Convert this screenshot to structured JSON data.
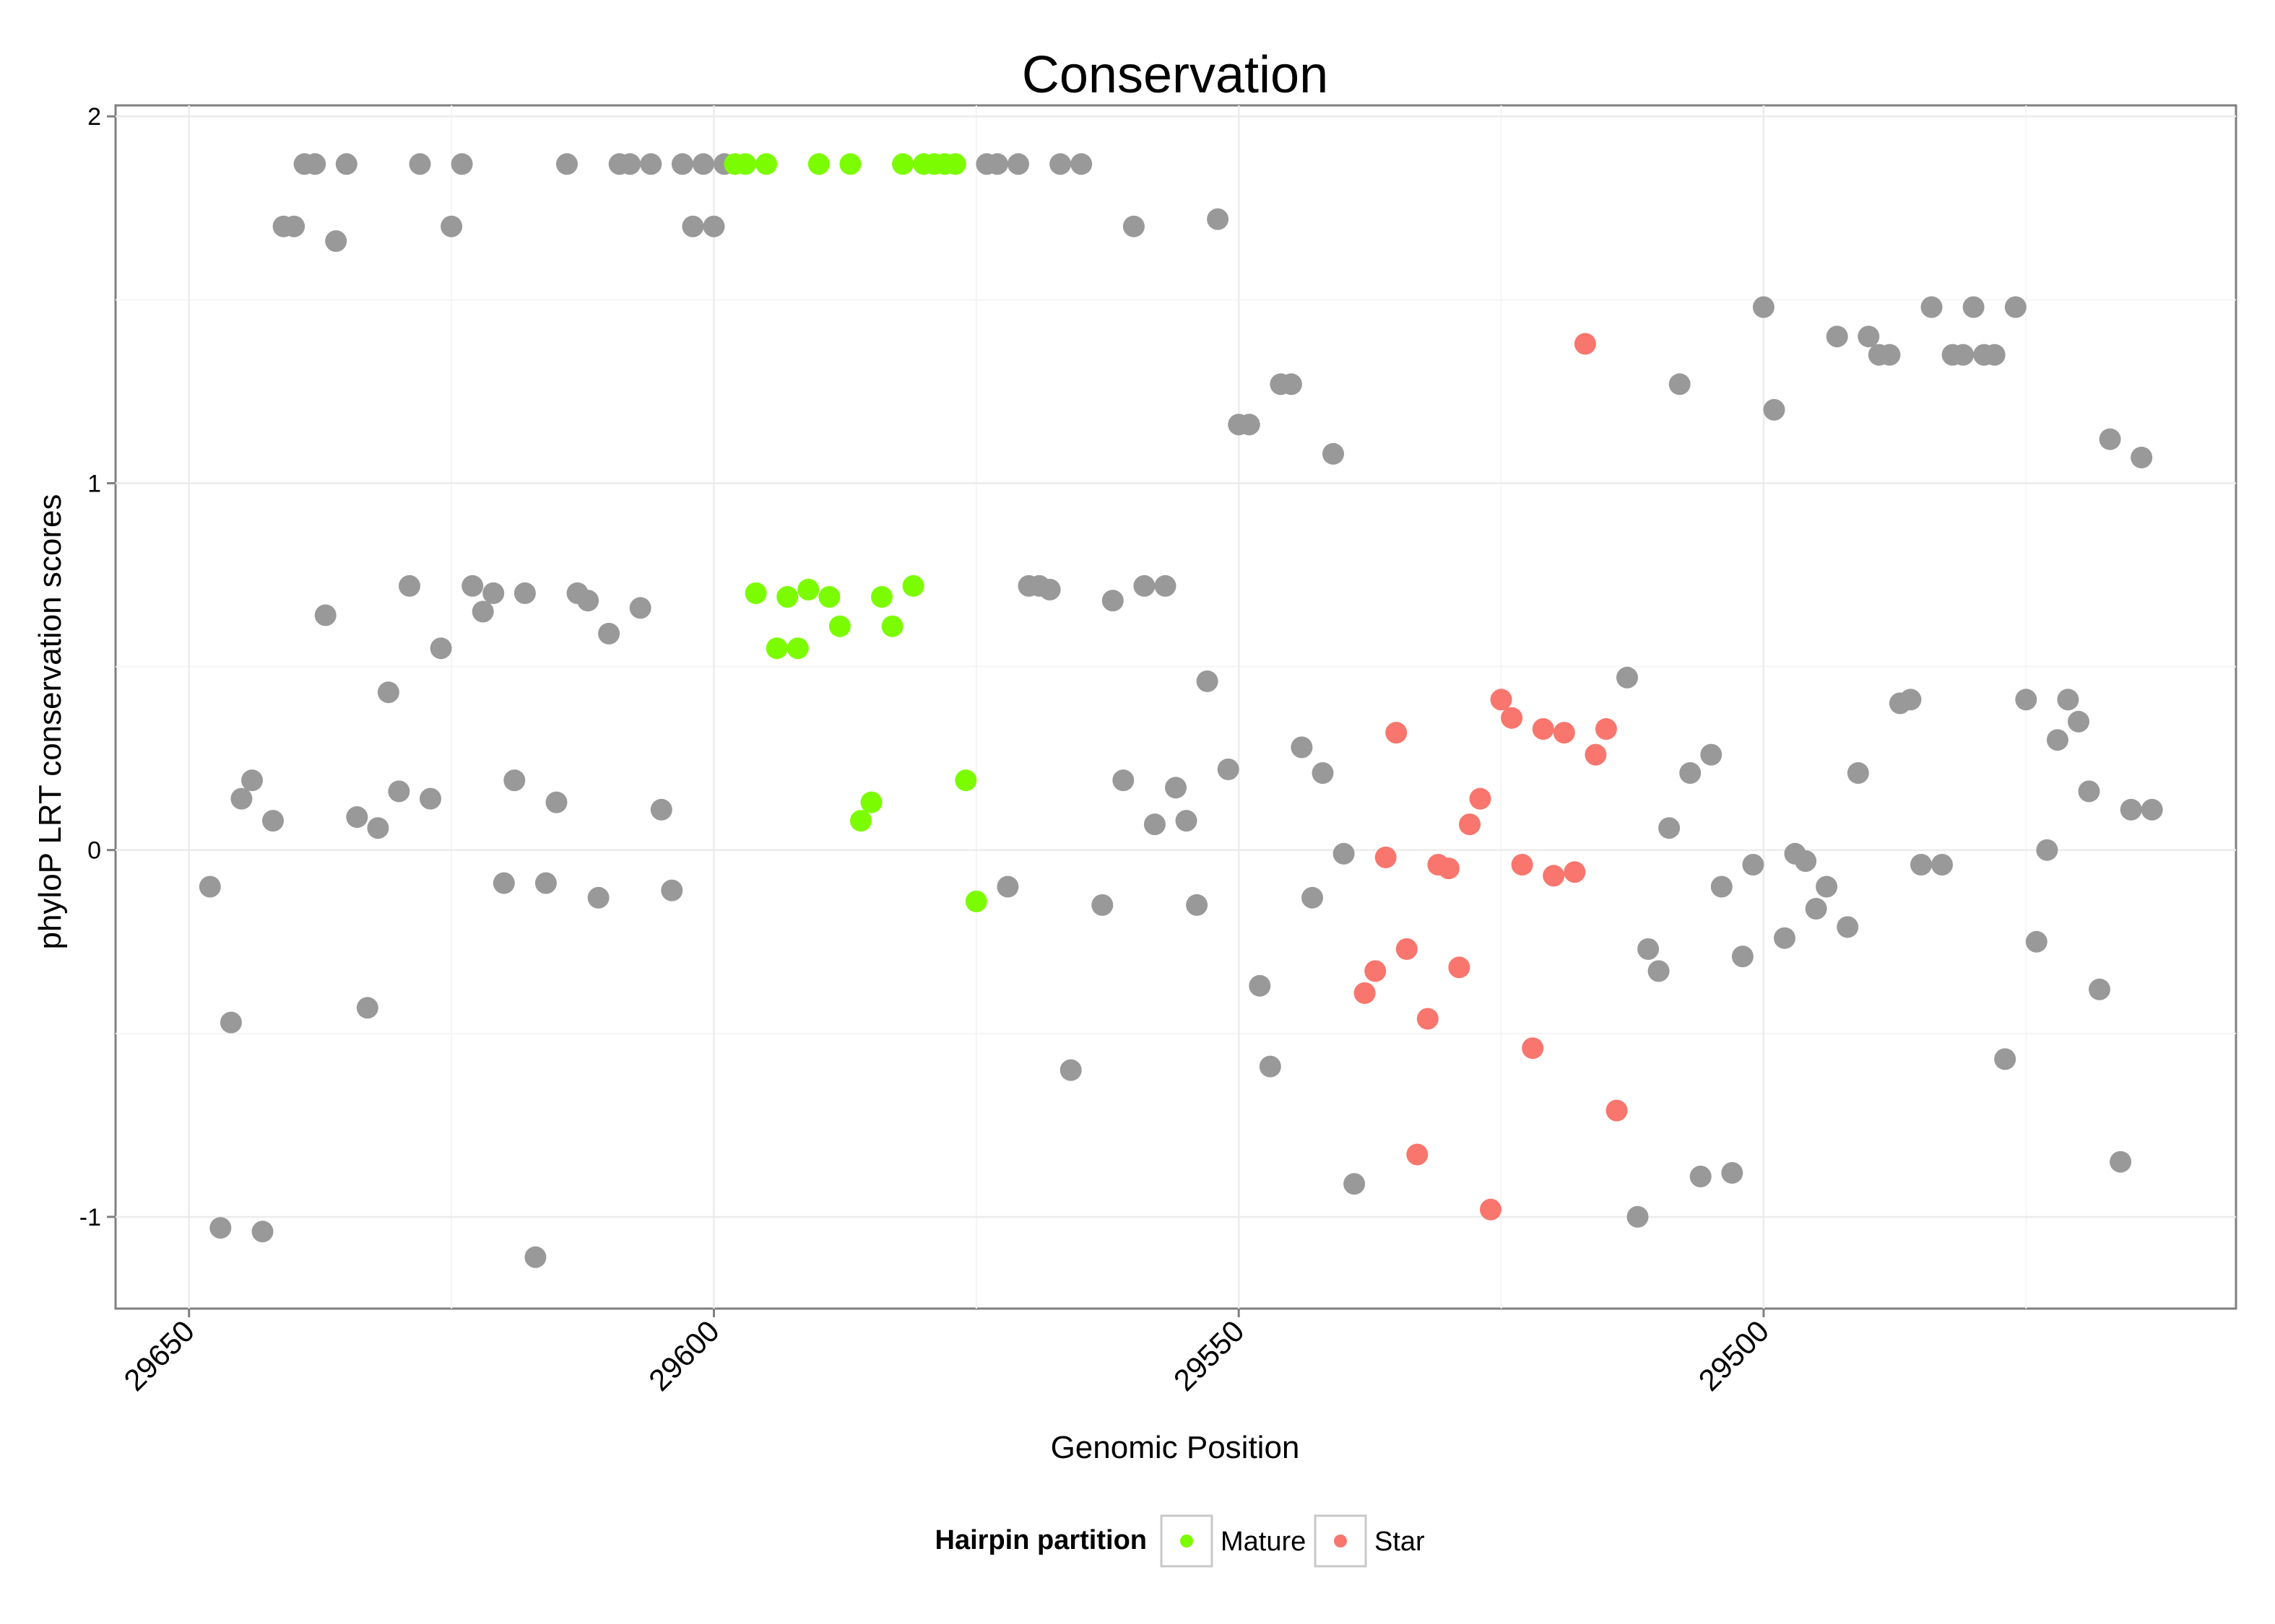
{
  "chart_data": {
    "type": "scatter",
    "title": "Conservation",
    "xlabel": "Genomic Position",
    "ylabel": "phyloP LRT conservation scores",
    "x_reversed": true,
    "xlim": [
      29657,
      29455
    ],
    "ylim": [
      -1.25,
      2.03
    ],
    "x_ticks": [
      29650,
      29600,
      29550,
      29500
    ],
    "x_tick_labels": [
      "29650",
      "29600",
      "29550",
      "29500"
    ],
    "y_ticks": [
      -1,
      0,
      1,
      2
    ],
    "y_tick_labels": [
      "-1",
      "0",
      "1",
      "2"
    ],
    "grid": true,
    "legend": {
      "title": "Hairpin partition",
      "position": "bottom",
      "entries": [
        {
          "name": "Mature",
          "color": "#7CFC00"
        },
        {
          "name": "Star",
          "color": "#F8766D"
        }
      ]
    },
    "colors": {
      "Other": "#999999",
      "Mature": "#7CFC00",
      "Star": "#F8766D"
    },
    "series": [
      {
        "name": "Other",
        "points": [
          [
            29648,
            -0.1
          ],
          [
            29647,
            -1.03
          ],
          [
            29646,
            -0.47
          ],
          [
            29645,
            0.14
          ],
          [
            29644,
            0.19
          ],
          [
            29643,
            -1.04
          ],
          [
            29642,
            0.08
          ],
          [
            29641,
            1.7
          ],
          [
            29640,
            1.7
          ],
          [
            29639,
            1.87
          ],
          [
            29638,
            1.87
          ],
          [
            29637,
            0.64
          ],
          [
            29636,
            1.66
          ],
          [
            29635,
            1.87
          ],
          [
            29634,
            0.09
          ],
          [
            29633,
            -0.43
          ],
          [
            29632,
            0.06
          ],
          [
            29631,
            0.43
          ],
          [
            29630,
            0.16
          ],
          [
            29629,
            0.72
          ],
          [
            29628,
            1.87
          ],
          [
            29627,
            0.14
          ],
          [
            29626,
            0.55
          ],
          [
            29625,
            1.7
          ],
          [
            29624,
            1.87
          ],
          [
            29623,
            0.72
          ],
          [
            29622,
            0.65
          ],
          [
            29621,
            0.7
          ],
          [
            29620,
            -0.09
          ],
          [
            29619,
            0.19
          ],
          [
            29618,
            0.7
          ],
          [
            29617,
            -1.11
          ],
          [
            29616,
            -0.09
          ],
          [
            29615,
            0.13
          ],
          [
            29614,
            1.87
          ],
          [
            29613,
            0.7
          ],
          [
            29612,
            0.68
          ],
          [
            29611,
            -0.13
          ],
          [
            29610,
            0.59
          ],
          [
            29609,
            1.87
          ],
          [
            29608,
            1.87
          ],
          [
            29607,
            0.66
          ],
          [
            29606,
            1.87
          ],
          [
            29605,
            0.11
          ],
          [
            29604,
            -0.11
          ],
          [
            29603,
            1.87
          ],
          [
            29602,
            1.7
          ],
          [
            29601,
            1.87
          ],
          [
            29600,
            1.7
          ],
          [
            29599,
            1.87
          ],
          [
            29573,
            1.87
          ],
          [
            29574,
            1.87
          ],
          [
            29572,
            -0.1
          ],
          [
            29571,
            1.87
          ],
          [
            29570,
            0.72
          ],
          [
            29569,
            0.72
          ],
          [
            29568,
            0.71
          ],
          [
            29567,
            1.87
          ],
          [
            29566,
            -0.6
          ],
          [
            29565,
            1.87
          ],
          [
            29563,
            -0.15
          ],
          [
            29562,
            0.68
          ],
          [
            29561,
            0.19
          ],
          [
            29560,
            1.7
          ],
          [
            29559,
            0.72
          ],
          [
            29558,
            0.07
          ],
          [
            29557,
            0.72
          ],
          [
            29556,
            0.17
          ],
          [
            29555,
            0.08
          ],
          [
            29554,
            -0.15
          ],
          [
            29553,
            0.46
          ],
          [
            29552,
            1.72
          ],
          [
            29551,
            0.22
          ],
          [
            29550,
            1.16
          ],
          [
            29549,
            1.16
          ],
          [
            29548,
            -0.37
          ],
          [
            29547,
            -0.59
          ],
          [
            29546,
            1.27
          ],
          [
            29545,
            1.27
          ],
          [
            29544,
            0.28
          ],
          [
            29543,
            -0.13
          ],
          [
            29542,
            0.21
          ],
          [
            29541,
            1.08
          ],
          [
            29540,
            -0.01
          ],
          [
            29539,
            -0.91
          ],
          [
            29513,
            0.47
          ],
          [
            29512,
            -1.0
          ],
          [
            29511,
            -0.27
          ],
          [
            29510,
            -0.33
          ],
          [
            29509,
            0.06
          ],
          [
            29508,
            1.27
          ],
          [
            29507,
            0.21
          ],
          [
            29506,
            -0.89
          ],
          [
            29505,
            0.26
          ],
          [
            29504,
            -0.1
          ],
          [
            29503,
            -0.88
          ],
          [
            29502,
            -0.29
          ],
          [
            29501,
            -0.04
          ],
          [
            29500,
            1.48
          ],
          [
            29499,
            1.2
          ],
          [
            29498,
            -0.24
          ],
          [
            29497,
            -0.01
          ],
          [
            29496,
            -0.03
          ],
          [
            29495,
            -0.16
          ],
          [
            29494,
            -0.1
          ],
          [
            29493,
            1.4
          ],
          [
            29492,
            -0.21
          ],
          [
            29491,
            0.21
          ],
          [
            29490,
            1.4
          ],
          [
            29489,
            1.35
          ],
          [
            29488,
            1.35
          ],
          [
            29487,
            0.4
          ],
          [
            29486,
            0.41
          ],
          [
            29485,
            -0.04
          ],
          [
            29484,
            1.48
          ],
          [
            29483,
            -0.04
          ],
          [
            29482,
            1.35
          ],
          [
            29481,
            1.35
          ],
          [
            29480,
            1.48
          ],
          [
            29479,
            1.35
          ],
          [
            29478,
            1.35
          ],
          [
            29477,
            -0.57
          ],
          [
            29476,
            1.48
          ],
          [
            29475,
            0.41
          ],
          [
            29474,
            -0.25
          ],
          [
            29473,
            0.0
          ],
          [
            29472,
            0.3
          ],
          [
            29471,
            0.41
          ],
          [
            29470,
            0.35
          ],
          [
            29469,
            0.16
          ],
          [
            29468,
            -0.38
          ],
          [
            29467,
            1.12
          ],
          [
            29466,
            -0.85
          ],
          [
            29465,
            0.11
          ],
          [
            29464,
            1.07
          ],
          [
            29463,
            0.11
          ]
        ]
      },
      {
        "name": "Mature",
        "points": [
          [
            29598,
            1.87
          ],
          [
            29597,
            1.87
          ],
          [
            29596,
            0.7
          ],
          [
            29595,
            1.87
          ],
          [
            29594,
            0.55
          ],
          [
            29593,
            0.69
          ],
          [
            29592,
            0.55
          ],
          [
            29591,
            0.71
          ],
          [
            29590,
            1.87
          ],
          [
            29589,
            0.69
          ],
          [
            29588,
            0.61
          ],
          [
            29587,
            1.87
          ],
          [
            29586,
            0.08
          ],
          [
            29585,
            0.13
          ],
          [
            29584,
            0.69
          ],
          [
            29583,
            0.61
          ],
          [
            29582,
            1.87
          ],
          [
            29581,
            0.72
          ],
          [
            29580,
            1.87
          ],
          [
            29579,
            1.87
          ],
          [
            29578,
            1.87
          ],
          [
            29577,
            1.87
          ],
          [
            29576,
            0.19
          ],
          [
            29575,
            -0.14
          ]
        ]
      },
      {
        "name": "Star",
        "points": [
          [
            29538,
            -0.39
          ],
          [
            29537,
            -0.33
          ],
          [
            29536,
            -0.02
          ],
          [
            29535,
            0.32
          ],
          [
            29534,
            -0.27
          ],
          [
            29533,
            -0.83
          ],
          [
            29532,
            -0.46
          ],
          [
            29531,
            -0.04
          ],
          [
            29530,
            -0.05
          ],
          [
            29529,
            -0.32
          ],
          [
            29528,
            0.07
          ],
          [
            29527,
            0.14
          ],
          [
            29526,
            -0.98
          ],
          [
            29525,
            0.41
          ],
          [
            29524,
            0.36
          ],
          [
            29523,
            -0.04
          ],
          [
            29522,
            -0.54
          ],
          [
            29521,
            0.33
          ],
          [
            29520,
            -0.07
          ],
          [
            29519,
            0.32
          ],
          [
            29518,
            -0.06
          ],
          [
            29517,
            1.38
          ],
          [
            29516,
            0.26
          ],
          [
            29515,
            0.33
          ],
          [
            29514,
            -0.71
          ]
        ]
      }
    ]
  }
}
